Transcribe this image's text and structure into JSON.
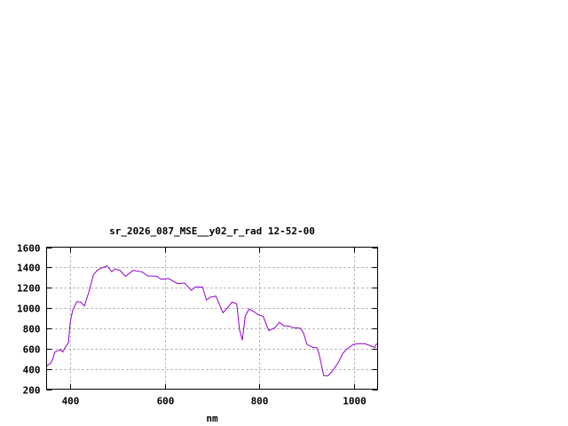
{
  "chart_data": {
    "type": "line",
    "title": "sr_2026_087_MSE__y02_r_rad 12-52-00",
    "xlabel": "nm",
    "ylabel": "",
    "xlim": [
      350,
      1050
    ],
    "ylim": [
      200,
      1600
    ],
    "xticks": [
      400,
      600,
      800,
      1000
    ],
    "yticks": [
      200,
      400,
      600,
      800,
      1000,
      1200,
      1400,
      1600
    ],
    "grid": true,
    "line_color": "#9400d3",
    "series": [
      {
        "x": [
          350,
          358,
          363,
          367,
          374,
          380,
          384,
          389,
          396,
          400,
          405,
          414,
          422,
          430,
          439,
          449,
          458,
          467,
          478,
          488,
          494,
          505,
          517,
          533,
          552,
          564,
          583,
          592,
          608,
          627,
          642,
          656,
          665,
          680,
          688,
          697,
          708,
          723,
          733,
          742,
          752,
          758,
          764,
          770,
          778,
          789,
          798,
          808,
          820,
          833,
          842,
          852,
          861,
          872,
          887,
          893,
          901,
          914,
          921,
          926,
          936,
          945,
          954,
          967,
          976,
          986,
          998,
          1008,
          1023,
          1036,
          1044,
          1047,
          1050
        ],
        "y": [
          428,
          455,
          493,
          566,
          580,
          590,
          566,
          610,
          654,
          859,
          976,
          1064,
          1058,
          1020,
          1152,
          1328,
          1377,
          1395,
          1415,
          1357,
          1386,
          1372,
          1313,
          1372,
          1357,
          1316,
          1313,
          1284,
          1290,
          1240,
          1246,
          1175,
          1210,
          1205,
          1079,
          1108,
          1117,
          953,
          1005,
          1058,
          1041,
          786,
          683,
          918,
          991,
          962,
          932,
          918,
          777,
          806,
          859,
          824,
          824,
          806,
          800,
          756,
          639,
          610,
          610,
          551,
          332,
          332,
          376,
          464,
          551,
          601,
          640,
          648,
          648,
          625,
          610,
          645,
          640
        ]
      }
    ]
  }
}
